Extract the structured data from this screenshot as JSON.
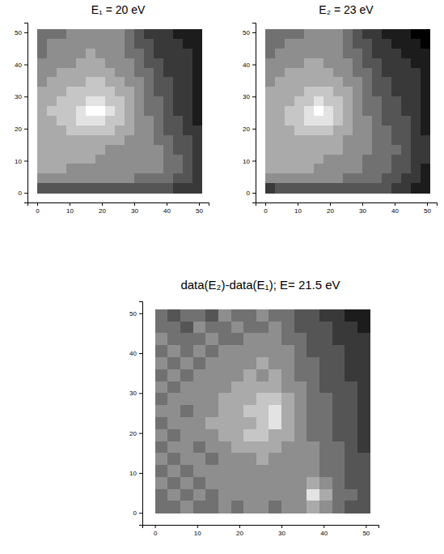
{
  "chart_data": [
    {
      "type": "heatmap",
      "title": "E₁ = 20 eV",
      "xlim": [
        -3,
        53
      ],
      "ylim": [
        -3,
        53
      ],
      "xticks": [
        0,
        10,
        20,
        30,
        40,
        50
      ],
      "yticks": [
        0,
        10,
        20,
        30,
        40,
        50
      ],
      "clim": [
        0,
        9
      ],
      "xbins": [
        0,
        3,
        6,
        9,
        12,
        15,
        18,
        21,
        24,
        27,
        30,
        33,
        36,
        39,
        42,
        45,
        48,
        51
      ],
      "ybins": [
        51,
        48,
        45,
        42,
        39,
        36,
        33,
        30,
        27,
        24,
        21,
        18,
        15,
        12,
        9,
        6,
        3,
        0
      ],
      "cells": [
        [
          4,
          4,
          4,
          5,
          5,
          5,
          5,
          5,
          5,
          4,
          3,
          2,
          2,
          2,
          1,
          1,
          1
        ],
        [
          4,
          5,
          5,
          5,
          5,
          5,
          5,
          5,
          5,
          4,
          3,
          3,
          2,
          2,
          2,
          1,
          1
        ],
        [
          4,
          5,
          5,
          5,
          5,
          6,
          5,
          5,
          5,
          4,
          4,
          3,
          2,
          2,
          2,
          2,
          1
        ],
        [
          5,
          5,
          5,
          5,
          6,
          6,
          6,
          5,
          5,
          5,
          4,
          3,
          3,
          2,
          2,
          2,
          1
        ],
        [
          5,
          5,
          6,
          6,
          6,
          6,
          6,
          6,
          5,
          5,
          4,
          4,
          3,
          2,
          2,
          2,
          1
        ],
        [
          5,
          6,
          6,
          6,
          6,
          7,
          7,
          6,
          6,
          5,
          5,
          4,
          3,
          3,
          2,
          2,
          1
        ],
        [
          6,
          6,
          6,
          7,
          7,
          7,
          7,
          7,
          6,
          6,
          5,
          4,
          3,
          3,
          2,
          2,
          1
        ],
        [
          6,
          6,
          7,
          7,
          7,
          8,
          8,
          7,
          7,
          6,
          5,
          4,
          4,
          3,
          2,
          2,
          1
        ],
        [
          6,
          7,
          7,
          7,
          8,
          9,
          9,
          8,
          7,
          6,
          5,
          4,
          4,
          3,
          2,
          2,
          1
        ],
        [
          6,
          6,
          7,
          7,
          8,
          8,
          8,
          7,
          7,
          6,
          5,
          5,
          4,
          3,
          3,
          2,
          1
        ],
        [
          6,
          6,
          6,
          7,
          7,
          7,
          7,
          7,
          6,
          6,
          5,
          5,
          4,
          3,
          3,
          2,
          2
        ],
        [
          6,
          6,
          6,
          6,
          6,
          6,
          6,
          6,
          6,
          5,
          5,
          5,
          4,
          4,
          3,
          3,
          2
        ],
        [
          6,
          6,
          6,
          6,
          6,
          6,
          6,
          5,
          5,
          5,
          5,
          5,
          5,
          4,
          3,
          3,
          2
        ],
        [
          6,
          6,
          6,
          6,
          6,
          6,
          5,
          5,
          5,
          5,
          5,
          5,
          5,
          4,
          4,
          3,
          2
        ],
        [
          6,
          6,
          6,
          5,
          5,
          5,
          5,
          5,
          5,
          5,
          5,
          5,
          5,
          4,
          4,
          3,
          2
        ],
        [
          5,
          5,
          5,
          5,
          5,
          5,
          5,
          5,
          5,
          5,
          4,
          4,
          4,
          4,
          3,
          3,
          2
        ],
        [
          3,
          3,
          3,
          3,
          3,
          3,
          3,
          3,
          3,
          3,
          3,
          3,
          3,
          3,
          2,
          2,
          2
        ]
      ]
    },
    {
      "type": "heatmap",
      "title": "E₂ = 23 eV",
      "xlim": [
        -3,
        53
      ],
      "ylim": [
        -3,
        53
      ],
      "xticks": [
        0,
        10,
        20,
        30,
        40,
        50
      ],
      "yticks": [
        0,
        10,
        20,
        30,
        40,
        50
      ],
      "clim": [
        0,
        9
      ],
      "xbins": [
        0,
        3,
        6,
        9,
        12,
        15,
        18,
        21,
        24,
        27,
        30,
        33,
        36,
        39,
        42,
        45,
        48,
        51
      ],
      "ybins": [
        51,
        48,
        45,
        42,
        39,
        36,
        33,
        30,
        27,
        24,
        21,
        18,
        15,
        12,
        9,
        6,
        3,
        0
      ],
      "cells": [
        [
          4,
          4,
          4,
          4,
          5,
          5,
          5,
          5,
          4,
          3,
          2,
          2,
          1,
          1,
          1,
          0,
          0
        ],
        [
          4,
          4,
          5,
          5,
          5,
          5,
          5,
          5,
          4,
          3,
          3,
          2,
          2,
          1,
          1,
          1,
          0
        ],
        [
          4,
          5,
          5,
          5,
          5,
          5,
          5,
          5,
          4,
          4,
          3,
          2,
          2,
          2,
          1,
          1,
          1
        ],
        [
          5,
          5,
          5,
          5,
          6,
          6,
          5,
          5,
          5,
          4,
          3,
          3,
          2,
          2,
          2,
          1,
          1
        ],
        [
          5,
          5,
          6,
          6,
          6,
          6,
          6,
          5,
          5,
          4,
          4,
          3,
          2,
          2,
          2,
          2,
          1
        ],
        [
          5,
          6,
          6,
          6,
          6,
          6,
          6,
          6,
          5,
          5,
          4,
          3,
          3,
          2,
          2,
          2,
          1
        ],
        [
          6,
          6,
          6,
          6,
          7,
          7,
          7,
          6,
          6,
          5,
          4,
          3,
          3,
          2,
          2,
          2,
          1
        ],
        [
          6,
          6,
          6,
          7,
          7,
          8,
          7,
          7,
          6,
          5,
          4,
          4,
          3,
          3,
          2,
          2,
          1
        ],
        [
          6,
          6,
          7,
          7,
          8,
          9,
          8,
          7,
          6,
          5,
          4,
          4,
          3,
          3,
          2,
          2,
          1
        ],
        [
          6,
          6,
          7,
          7,
          8,
          8,
          8,
          7,
          6,
          5,
          5,
          4,
          3,
          3,
          3,
          2,
          1
        ],
        [
          6,
          6,
          6,
          7,
          7,
          7,
          7,
          6,
          6,
          5,
          5,
          4,
          4,
          3,
          3,
          2,
          1
        ],
        [
          6,
          6,
          6,
          6,
          6,
          6,
          6,
          6,
          5,
          5,
          5,
          4,
          4,
          3,
          3,
          2,
          2
        ],
        [
          6,
          6,
          6,
          6,
          6,
          6,
          6,
          6,
          5,
          5,
          5,
          4,
          4,
          4,
          3,
          2,
          2
        ],
        [
          6,
          6,
          6,
          6,
          6,
          6,
          5,
          5,
          5,
          5,
          4,
          4,
          4,
          3,
          3,
          2,
          2
        ],
        [
          6,
          6,
          6,
          6,
          6,
          5,
          5,
          5,
          5,
          5,
          4,
          4,
          4,
          3,
          3,
          2,
          1
        ],
        [
          5,
          5,
          5,
          5,
          5,
          5,
          5,
          5,
          4,
          4,
          4,
          4,
          3,
          3,
          2,
          2,
          1
        ],
        [
          2,
          3,
          3,
          3,
          3,
          3,
          3,
          3,
          3,
          3,
          3,
          3,
          3,
          2,
          2,
          1,
          1
        ]
      ]
    },
    {
      "type": "heatmap",
      "title": "data(E₂)-data(E₁); E= 21.5 eV",
      "xlim": [
        -3,
        53
      ],
      "ylim": [
        -3,
        53
      ],
      "xticks": [
        0,
        10,
        20,
        30,
        40,
        50
      ],
      "yticks": [
        0,
        10,
        20,
        30,
        40,
        50
      ],
      "clim": [
        0,
        9
      ],
      "xbins": [
        0,
        3,
        6,
        9,
        12,
        15,
        18,
        21,
        24,
        27,
        30,
        33,
        36,
        39,
        42,
        45,
        48,
        51
      ],
      "ybins": [
        51,
        48,
        45,
        42,
        39,
        36,
        33,
        30,
        27,
        24,
        21,
        18,
        15,
        12,
        9,
        6,
        3,
        0
      ],
      "cells": [
        [
          4,
          3,
          4,
          4,
          3,
          5,
          4,
          4,
          5,
          4,
          4,
          3,
          3,
          2,
          2,
          1,
          1
        ],
        [
          4,
          4,
          3,
          5,
          4,
          4,
          5,
          4,
          4,
          5,
          4,
          3,
          3,
          3,
          2,
          2,
          1
        ],
        [
          5,
          4,
          4,
          4,
          5,
          4,
          4,
          5,
          5,
          5,
          4,
          4,
          3,
          3,
          2,
          2,
          2
        ],
        [
          4,
          5,
          4,
          5,
          4,
          5,
          5,
          5,
          5,
          5,
          5,
          4,
          3,
          3,
          3,
          2,
          2
        ],
        [
          5,
          4,
          5,
          4,
          5,
          5,
          5,
          5,
          6,
          5,
          5,
          4,
          4,
          3,
          3,
          2,
          2
        ],
        [
          4,
          5,
          4,
          5,
          5,
          5,
          5,
          6,
          5,
          6,
          5,
          4,
          4,
          3,
          3,
          2,
          2
        ],
        [
          5,
          4,
          5,
          5,
          5,
          5,
          6,
          6,
          6,
          6,
          5,
          5,
          4,
          3,
          3,
          3,
          2
        ],
        [
          4,
          5,
          5,
          5,
          5,
          6,
          6,
          6,
          7,
          7,
          6,
          5,
          4,
          4,
          3,
          3,
          2
        ],
        [
          5,
          5,
          4,
          5,
          5,
          6,
          6,
          7,
          7,
          8,
          6,
          5,
          4,
          4,
          3,
          3,
          2
        ],
        [
          4,
          5,
          5,
          5,
          6,
          6,
          6,
          6,
          7,
          8,
          6,
          5,
          4,
          4,
          3,
          3,
          2
        ],
        [
          5,
          4,
          5,
          5,
          5,
          6,
          6,
          7,
          7,
          6,
          6,
          5,
          4,
          4,
          3,
          3,
          2
        ],
        [
          4,
          5,
          5,
          4,
          5,
          5,
          6,
          6,
          6,
          6,
          5,
          5,
          5,
          4,
          4,
          3,
          2
        ],
        [
          5,
          4,
          5,
          5,
          4,
          5,
          5,
          5,
          6,
          5,
          5,
          5,
          5,
          4,
          4,
          3,
          3
        ],
        [
          4,
          5,
          4,
          5,
          5,
          5,
          5,
          5,
          5,
          5,
          5,
          5,
          5,
          4,
          4,
          3,
          3
        ],
        [
          5,
          4,
          5,
          4,
          5,
          5,
          5,
          5,
          5,
          5,
          5,
          5,
          6,
          5,
          4,
          3,
          3
        ],
        [
          4,
          5,
          4,
          5,
          4,
          5,
          5,
          5,
          5,
          5,
          5,
          5,
          8,
          6,
          4,
          4,
          3
        ],
        [
          4,
          4,
          5,
          4,
          4,
          5,
          4,
          5,
          5,
          4,
          5,
          5,
          6,
          5,
          4,
          3,
          3
        ]
      ]
    }
  ]
}
